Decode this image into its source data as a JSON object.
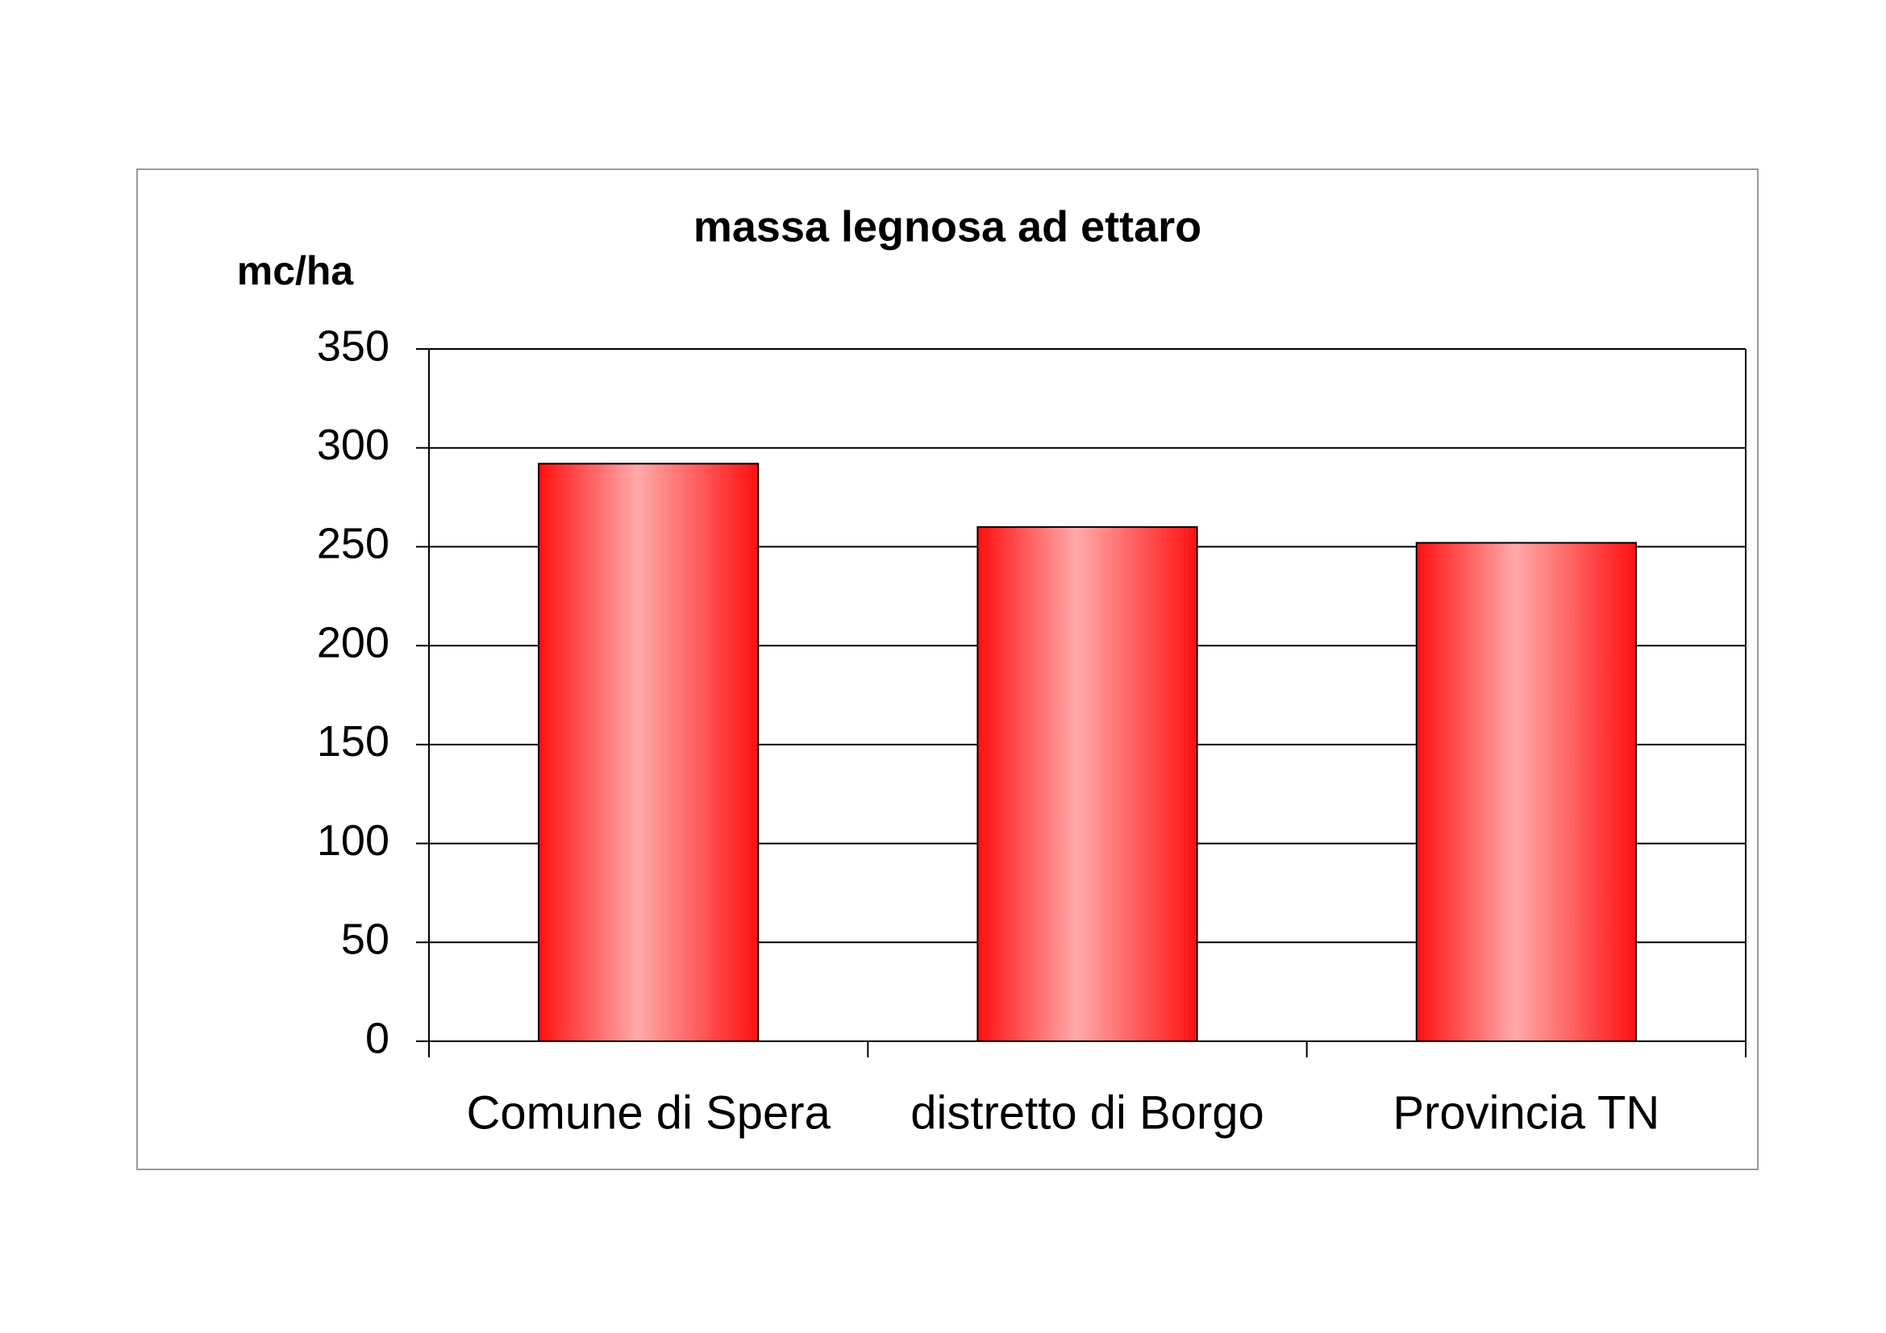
{
  "chart_data": {
    "type": "bar",
    "title": "massa legnosa ad ettaro",
    "y_label": "mc/ha",
    "categories": [
      "Comune di Spera",
      "distretto di Borgo",
      "Provincia TN"
    ],
    "values": [
      292,
      260,
      252
    ],
    "color": "#ff1010",
    "ylim": [
      0,
      350
    ],
    "yticks": [
      0,
      50,
      100,
      150,
      200,
      250,
      300,
      350
    ],
    "grid": true
  }
}
